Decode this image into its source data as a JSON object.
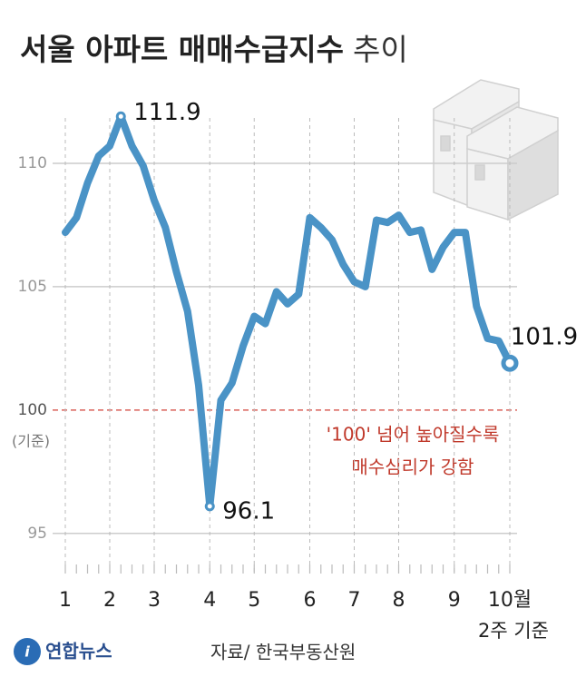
{
  "chart_data": {
    "type": "line",
    "title_parts": [
      "서울 아파트 매매수급지수",
      "추이"
    ],
    "categories": [
      "1",
      null,
      null,
      null,
      "2",
      null,
      null,
      null,
      "3",
      null,
      null,
      null,
      null,
      "4",
      null,
      null,
      null,
      "5",
      null,
      null,
      null,
      null,
      "6",
      null,
      null,
      null,
      "7",
      null,
      null,
      null,
      "8",
      null,
      null,
      null,
      null,
      "9",
      null,
      null,
      null,
      null,
      "10월"
    ],
    "values": [
      107.2,
      107.8,
      109.2,
      110.3,
      110.7,
      111.9,
      110.7,
      109.9,
      108.5,
      107.4,
      105.6,
      104.0,
      101.0,
      96.1,
      100.4,
      101.1,
      102.6,
      103.8,
      103.5,
      104.8,
      104.3,
      104.7,
      107.8,
      107.4,
      106.9,
      105.9,
      105.2,
      105.0,
      107.7,
      107.6,
      107.9,
      107.2,
      107.3,
      105.7,
      106.6,
      107.2,
      107.2,
      104.2,
      102.9,
      102.8,
      101.9
    ],
    "value_labels": [
      null,
      null,
      null,
      null,
      null,
      "111.9",
      null,
      null,
      null,
      null,
      null,
      null,
      null,
      "96.1",
      null,
      null,
      null,
      null,
      null,
      null,
      null,
      null,
      null,
      null,
      null,
      null,
      null,
      null,
      null,
      null,
      null,
      null,
      null,
      null,
      null,
      null,
      null,
      null,
      null,
      null,
      "101.9"
    ],
    "color": "#4a93c6",
    "ylim": [
      94,
      113
    ],
    "yticks": [
      95,
      100,
      105,
      110
    ],
    "grid": true,
    "reference_line": 100,
    "reference_color": "#d9605a",
    "y_note": "(기준)",
    "x_note": "2주 기준",
    "annotations": [
      "'100' 넘어 높아질수록",
      "매수심리가 강함"
    ],
    "source": "자료/ 한국부동산원",
    "logo": "연합뉴스"
  }
}
